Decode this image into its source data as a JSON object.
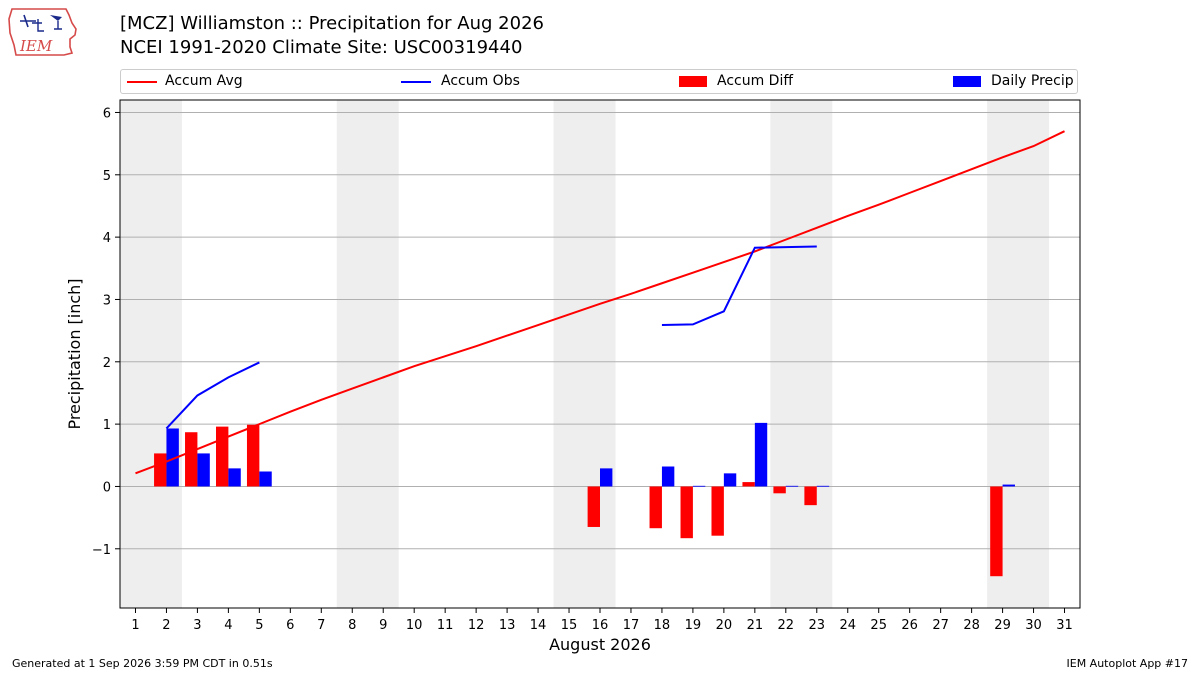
{
  "header": {
    "logo_text": "IEM",
    "title_line1": "[MCZ] Williamston :: Precipitation for Aug 2026",
    "title_line2": "NCEI 1991-2020 Climate Site: USC00319440"
  },
  "legend": {
    "placement": "top, above plot",
    "items": [
      {
        "label": "Accum Avg",
        "kind": "line",
        "color": "#ff0000"
      },
      {
        "label": "Accum Obs",
        "kind": "line",
        "color": "#0000ff"
      },
      {
        "label": "Accum Diff",
        "kind": "bar",
        "color": "#ff0000"
      },
      {
        "label": "Daily Precip",
        "kind": "bar",
        "color": "#0000ff"
      }
    ]
  },
  "footer": {
    "left": "Generated at 1 Sep 2026 3:59 PM CDT in 0.51s",
    "right": "IEM Autoplot App #17"
  },
  "chart_data": {
    "type": "bar",
    "title": "[MCZ] Williamston :: Precipitation for Aug 2026",
    "subtitle": "NCEI 1991-2020 Climate Site: USC00319440",
    "xlabel": "August 2026",
    "ylabel": "Precipitation [inch]",
    "xlim": [
      0.5,
      31.5
    ],
    "ylim": [
      -1.95,
      6.2
    ],
    "x_ticks": [
      1,
      2,
      3,
      4,
      5,
      6,
      7,
      8,
      9,
      10,
      11,
      12,
      13,
      14,
      15,
      16,
      17,
      18,
      19,
      20,
      21,
      22,
      23,
      24,
      25,
      26,
      27,
      28,
      29,
      30,
      31
    ],
    "y_ticks": [
      -1,
      0,
      1,
      2,
      3,
      4,
      5,
      6
    ],
    "y_tick_labels": [
      "−1",
      "0",
      "1",
      "2",
      "3",
      "4",
      "5",
      "6"
    ],
    "grid": "horizontal",
    "weekend_shading": [
      [
        1,
        2
      ],
      [
        8,
        9
      ],
      [
        15,
        16
      ],
      [
        22,
        23
      ],
      [
        29,
        30
      ]
    ],
    "weekend_color": "#eeeeee",
    "series": [
      {
        "name": "Accum Avg",
        "kind": "line",
        "color": "#ff0000",
        "x": [
          1,
          2,
          3,
          4,
          5,
          6,
          7,
          8,
          9,
          10,
          11,
          12,
          13,
          14,
          15,
          16,
          17,
          18,
          19,
          20,
          21,
          22,
          23,
          24,
          25,
          26,
          27,
          28,
          29,
          30,
          31
        ],
        "values": [
          0.21,
          0.4,
          0.6,
          0.8,
          1.0,
          1.2,
          1.39,
          1.57,
          1.75,
          1.93,
          2.09,
          2.25,
          2.42,
          2.59,
          2.76,
          2.93,
          3.09,
          3.26,
          3.43,
          3.6,
          3.77,
          3.96,
          4.15,
          4.34,
          4.52,
          4.71,
          4.9,
          5.09,
          5.28,
          5.46,
          5.7
        ]
      },
      {
        "name": "Accum Obs",
        "kind": "line",
        "color": "#0000ff",
        "x": [
          2,
          3,
          4,
          5
        ],
        "values": [
          0.93,
          1.46,
          1.75,
          1.99
        ]
      },
      {
        "name": "Accum Obs",
        "kind": "line",
        "color": "#0000ff",
        "x": [
          18,
          19,
          20,
          21,
          22,
          23
        ],
        "values": [
          2.59,
          2.6,
          2.81,
          3.83,
          3.84,
          3.85
        ]
      },
      {
        "name": "Accum Diff",
        "kind": "bar",
        "color": "#ff0000",
        "x": [
          2,
          3,
          4,
          5,
          16,
          18,
          19,
          20,
          21,
          22,
          23,
          29
        ],
        "values": [
          0.53,
          0.87,
          0.96,
          0.99,
          -0.65,
          -0.67,
          -0.83,
          -0.79,
          0.07,
          -0.11,
          -0.3,
          -1.44
        ]
      },
      {
        "name": "Daily Precip",
        "kind": "bar",
        "color": "#0000ff",
        "x": [
          2,
          3,
          4,
          5,
          16,
          18,
          19,
          20,
          21,
          22,
          23,
          29
        ],
        "values": [
          0.93,
          0.53,
          0.29,
          0.24,
          0.29,
          0.32,
          0.01,
          0.21,
          1.02,
          0.01,
          0.01,
          0.03
        ]
      }
    ]
  }
}
